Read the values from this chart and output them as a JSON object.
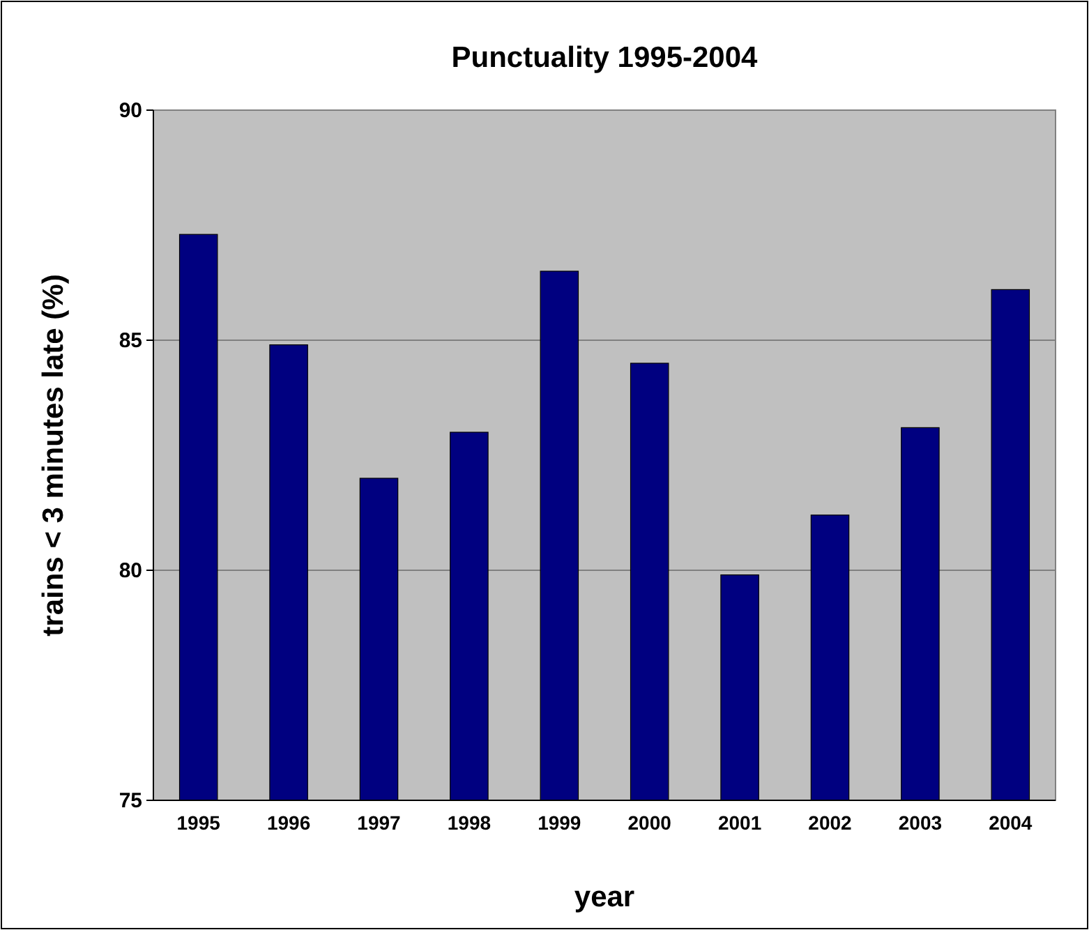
{
  "chart_data": {
    "type": "bar",
    "title": "Punctuality 1995-2004",
    "xlabel": "year",
    "ylabel": "trains < 3 minutes late (%)",
    "categories": [
      "1995",
      "1996",
      "1997",
      "1998",
      "1999",
      "2000",
      "2001",
      "2002",
      "2003",
      "2004"
    ],
    "values": [
      87.3,
      84.9,
      82.0,
      83.0,
      86.5,
      84.5,
      79.9,
      81.2,
      83.1,
      86.1
    ],
    "color": "#000080",
    "ylim": [
      75,
      90
    ],
    "yticks": [
      75,
      80,
      85,
      90
    ],
    "grid": "y"
  }
}
